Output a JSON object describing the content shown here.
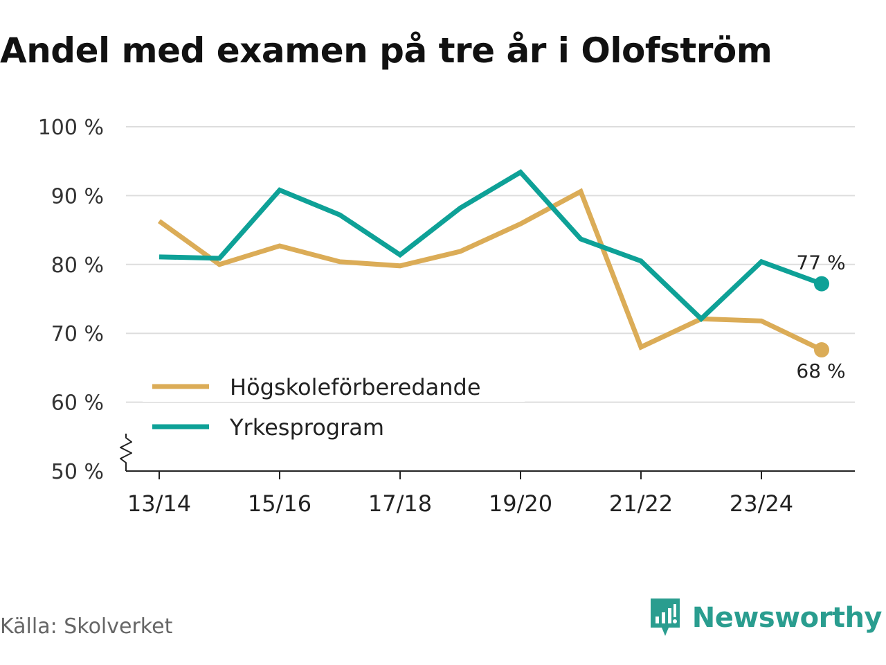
{
  "title": "Andel med examen på tre år i Olofström",
  "source": "Källa: Skolverket",
  "brand": {
    "name": "Newsworthy",
    "icon": "newsworthy-logo-icon",
    "color": "#2a9d8f"
  },
  "chart_data": {
    "type": "line",
    "title": "Andel med examen på tre år i Olofström",
    "xlabel": "",
    "ylabel": "",
    "ylim": [
      50,
      100
    ],
    "y_ticks": [
      "50 %",
      "60 %",
      "70 %",
      "80 %",
      "90 %",
      "100 %"
    ],
    "y_tick_values": [
      50,
      60,
      70,
      80,
      90,
      100
    ],
    "axis_break": true,
    "grid": true,
    "categories": [
      "13/14",
      "14/15",
      "15/16",
      "16/17",
      "17/18",
      "18/19",
      "19/20",
      "20/21",
      "21/22",
      "22/23",
      "23/24",
      "24/25"
    ],
    "x_tick_labels": [
      "13/14",
      "15/16",
      "17/18",
      "19/20",
      "21/22",
      "23/24"
    ],
    "legend_position": "bottom-left",
    "series": [
      {
        "name": "Högskoleförberedande",
        "color": "#dbac57",
        "values": [
          86.3,
          80.0,
          82.7,
          80.4,
          79.8,
          81.9,
          85.9,
          90.6,
          68.0,
          72.1,
          71.8,
          67.6
        ],
        "end_label": "68 %"
      },
      {
        "name": "Yrkesprogram",
        "color": "#0ea197",
        "values": [
          81.1,
          80.9,
          90.8,
          87.2,
          81.4,
          88.2,
          93.4,
          83.7,
          80.5,
          72.1,
          80.4,
          77.2
        ],
        "end_label": "77 %"
      }
    ]
  }
}
